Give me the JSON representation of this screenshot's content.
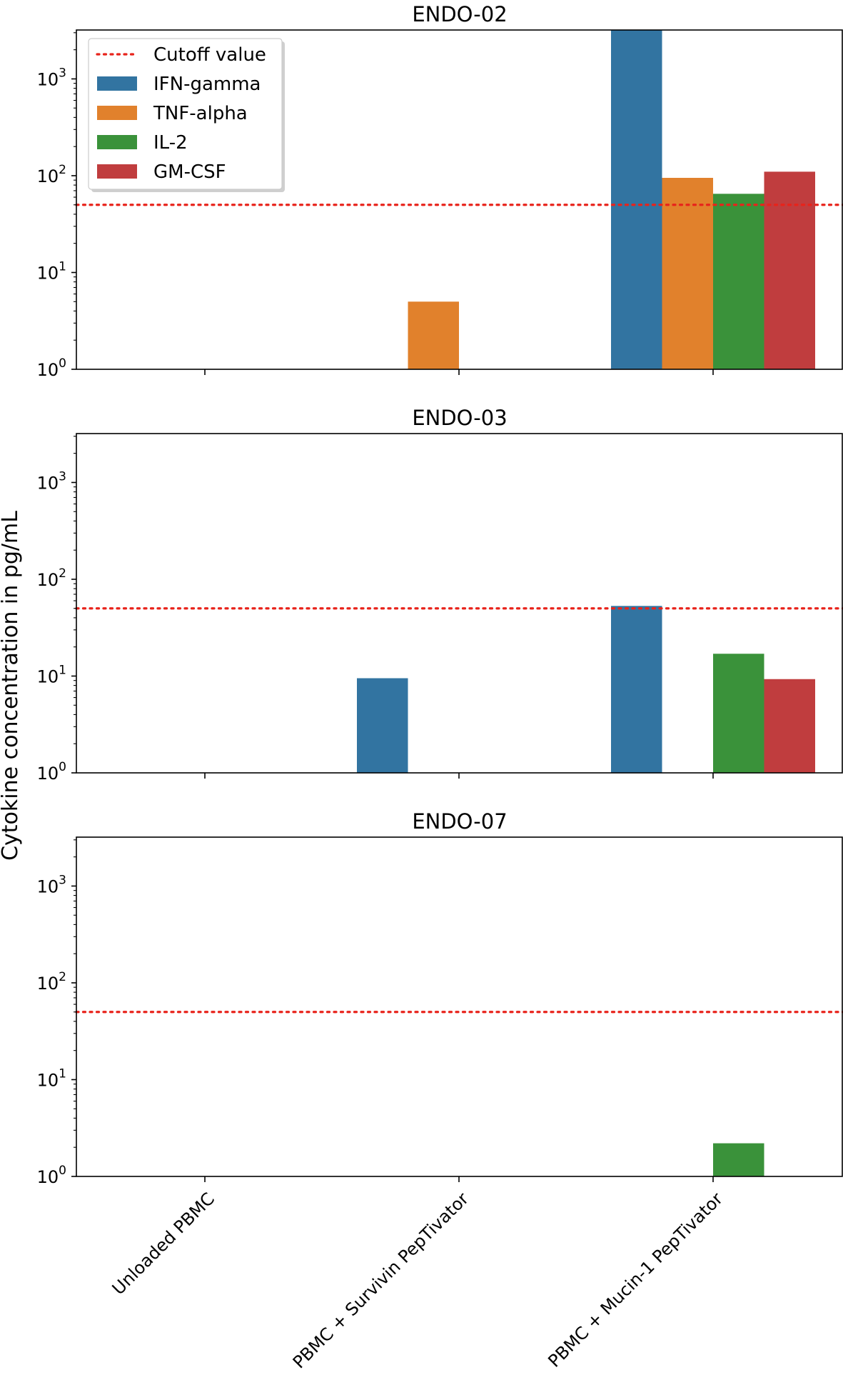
{
  "chart_data": {
    "type": "bar",
    "ylabel": "Cytokine concentration in pg/mL",
    "yscale": "log",
    "ylim": [
      1,
      3200
    ],
    "yticks": [
      {
        "value": 1,
        "base": "10",
        "exp": "0"
      },
      {
        "value": 10,
        "base": "10",
        "exp": "1"
      },
      {
        "value": 100,
        "base": "10",
        "exp": "2"
      },
      {
        "value": 1000,
        "base": "10",
        "exp": "3"
      }
    ],
    "categories": [
      "Unloaded PBMC",
      "PBMC + Survivin PepTivator",
      "PBMC + Mucin-1 PepTivator"
    ],
    "cutoff": {
      "label": "Cutoff value",
      "value": 50,
      "color": "#e8231b"
    },
    "series": [
      {
        "name": "IFN-gamma",
        "color": "#3274a1"
      },
      {
        "name": "TNF-alpha",
        "color": "#e1812c"
      },
      {
        "name": "IL-2",
        "color": "#3a923a"
      },
      {
        "name": "GM-CSF",
        "color": "#c03d3e"
      }
    ],
    "panels": [
      {
        "title": "ENDO-02",
        "values": {
          "IFN-gamma": [
            0,
            0,
            3200
          ],
          "TNF-alpha": [
            0,
            5,
            95
          ],
          "IL-2": [
            0,
            0,
            65
          ],
          "GM-CSF": [
            0,
            0,
            110
          ]
        }
      },
      {
        "title": "ENDO-03",
        "values": {
          "IFN-gamma": [
            0,
            9.5,
            53
          ],
          "TNF-alpha": [
            0,
            0,
            0
          ],
          "IL-2": [
            0,
            0,
            17
          ],
          "GM-CSF": [
            0,
            0,
            9.3
          ]
        }
      },
      {
        "title": "ENDO-07",
        "values": {
          "IFN-gamma": [
            0,
            0,
            0
          ],
          "TNF-alpha": [
            0,
            0,
            0
          ],
          "IL-2": [
            0,
            0,
            2.2
          ],
          "GM-CSF": [
            0,
            0,
            0
          ]
        }
      }
    ],
    "legend_location": "upper-left of top panel"
  }
}
